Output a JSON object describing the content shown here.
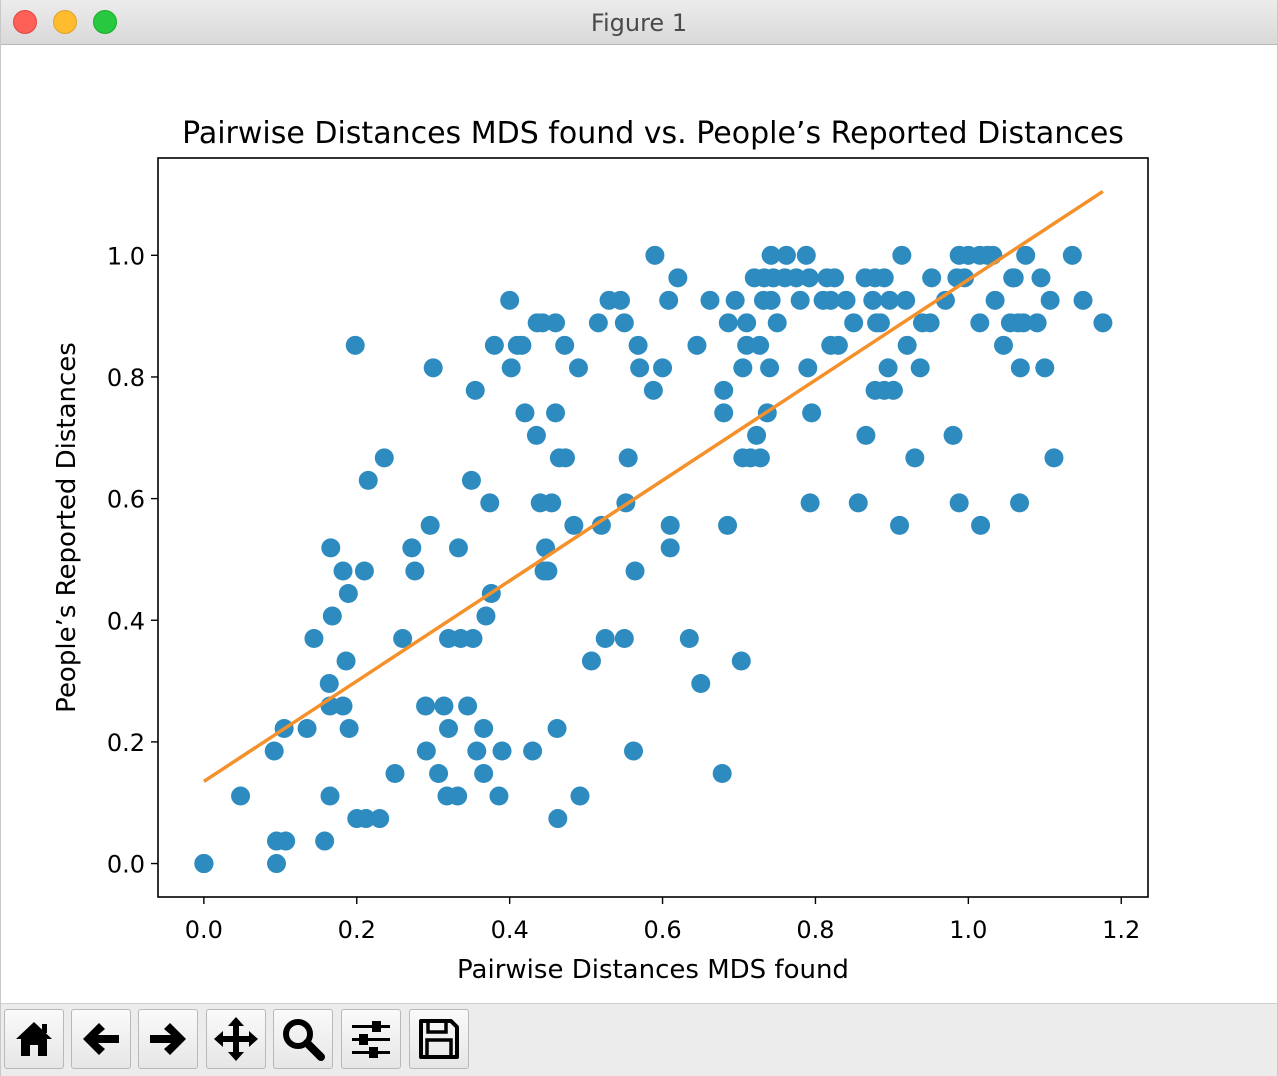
{
  "window": {
    "title": "Figure 1"
  },
  "toolbar": {
    "buttons": [
      {
        "name": "home-button",
        "icon": "home-icon"
      },
      {
        "name": "back-button",
        "icon": "arrow-left-icon"
      },
      {
        "name": "forward-button",
        "icon": "arrow-right-icon"
      },
      {
        "name": "pan-button",
        "icon": "move-icon"
      },
      {
        "name": "zoom-button",
        "icon": "magnifier-icon"
      },
      {
        "name": "configure-subplots-button",
        "icon": "sliders-icon"
      },
      {
        "name": "save-button",
        "icon": "floppy-disk-icon"
      }
    ]
  },
  "chart_data": {
    "type": "scatter",
    "title": "Pairwise Distances MDS found vs. People’s Reported Distances",
    "xlabel": "Pairwise Distances MDS found",
    "ylabel": "People’s Reported Distances",
    "xlim": [
      -0.06,
      1.235
    ],
    "ylim": [
      -0.055,
      1.16
    ],
    "xticks": [
      "0.0",
      "0.2",
      "0.4",
      "0.6",
      "0.8",
      "1.0",
      "1.2"
    ],
    "yticks": [
      "0.0",
      "0.2",
      "0.4",
      "0.6",
      "0.8",
      "1.0"
    ],
    "grid": false,
    "point_color": "#2e8bc0",
    "line_color": "#f5912b",
    "fit_line": {
      "x": [
        0.0,
        1.176
      ],
      "y": [
        0.135,
        1.105
      ]
    },
    "points": [
      [
        0.0,
        0.0
      ],
      [
        0.0,
        0.0
      ],
      [
        0.0,
        0.0
      ],
      [
        0.048,
        0.111
      ],
      [
        0.095,
        0.037
      ],
      [
        0.095,
        0.0
      ],
      [
        0.107,
        0.037
      ],
      [
        0.092,
        0.185
      ],
      [
        0.105,
        0.222
      ],
      [
        0.135,
        0.222
      ],
      [
        0.144,
        0.37
      ],
      [
        0.158,
        0.037
      ],
      [
        0.164,
        0.296
      ],
      [
        0.165,
        0.111
      ],
      [
        0.165,
        0.259
      ],
      [
        0.166,
        0.519
      ],
      [
        0.168,
        0.407
      ],
      [
        0.182,
        0.259
      ],
      [
        0.182,
        0.481
      ],
      [
        0.186,
        0.333
      ],
      [
        0.189,
        0.444
      ],
      [
        0.19,
        0.222
      ],
      [
        0.198,
        0.852
      ],
      [
        0.2,
        0.074
      ],
      [
        0.212,
        0.074
      ],
      [
        0.21,
        0.481
      ],
      [
        0.215,
        0.63
      ],
      [
        0.23,
        0.074
      ],
      [
        0.236,
        0.667
      ],
      [
        0.25,
        0.148
      ],
      [
        0.26,
        0.37
      ],
      [
        0.272,
        0.519
      ],
      [
        0.276,
        0.481
      ],
      [
        0.29,
        0.259
      ],
      [
        0.291,
        0.185
      ],
      [
        0.296,
        0.556
      ],
      [
        0.3,
        0.815
      ],
      [
        0.307,
        0.148
      ],
      [
        0.314,
        0.259
      ],
      [
        0.318,
        0.111
      ],
      [
        0.32,
        0.37
      ],
      [
        0.32,
        0.222
      ],
      [
        0.332,
        0.111
      ],
      [
        0.333,
        0.519
      ],
      [
        0.336,
        0.37
      ],
      [
        0.345,
        0.259
      ],
      [
        0.35,
        0.63
      ],
      [
        0.352,
        0.37
      ],
      [
        0.355,
        0.778
      ],
      [
        0.357,
        0.185
      ],
      [
        0.366,
        0.222
      ],
      [
        0.366,
        0.148
      ],
      [
        0.369,
        0.407
      ],
      [
        0.374,
        0.593
      ],
      [
        0.376,
        0.444
      ],
      [
        0.38,
        0.852
      ],
      [
        0.386,
        0.111
      ],
      [
        0.39,
        0.185
      ],
      [
        0.4,
        0.926
      ],
      [
        0.402,
        0.815
      ],
      [
        0.41,
        0.852
      ],
      [
        0.416,
        0.852
      ],
      [
        0.42,
        0.741
      ],
      [
        0.43,
        0.185
      ],
      [
        0.435,
        0.704
      ],
      [
        0.436,
        0.889
      ],
      [
        0.44,
        0.593
      ],
      [
        0.443,
        0.889
      ],
      [
        0.445,
        0.481
      ],
      [
        0.447,
        0.519
      ],
      [
        0.45,
        0.481
      ],
      [
        0.455,
        0.593
      ],
      [
        0.46,
        0.889
      ],
      [
        0.46,
        0.741
      ],
      [
        0.462,
        0.222
      ],
      [
        0.463,
        0.074
      ],
      [
        0.465,
        0.667
      ],
      [
        0.473,
        0.667
      ],
      [
        0.472,
        0.852
      ],
      [
        0.484,
        0.556
      ],
      [
        0.49,
        0.815
      ],
      [
        0.492,
        0.111
      ],
      [
        0.507,
        0.333
      ],
      [
        0.516,
        0.889
      ],
      [
        0.52,
        0.556
      ],
      [
        0.525,
        0.37
      ],
      [
        0.53,
        0.926
      ],
      [
        0.545,
        0.926
      ],
      [
        0.55,
        0.889
      ],
      [
        0.55,
        0.37
      ],
      [
        0.552,
        0.593
      ],
      [
        0.555,
        0.667
      ],
      [
        0.562,
        0.185
      ],
      [
        0.564,
        0.481
      ],
      [
        0.568,
        0.852
      ],
      [
        0.57,
        0.815
      ],
      [
        0.588,
        0.778
      ],
      [
        0.59,
        1.0
      ],
      [
        0.6,
        0.815
      ],
      [
        0.608,
        0.926
      ],
      [
        0.61,
        0.556
      ],
      [
        0.61,
        0.519
      ],
      [
        0.62,
        0.963
      ],
      [
        0.635,
        0.37
      ],
      [
        0.645,
        0.852
      ],
      [
        0.65,
        0.296
      ],
      [
        0.662,
        0.926
      ],
      [
        0.678,
        0.148
      ],
      [
        0.68,
        0.778
      ],
      [
        0.68,
        0.741
      ],
      [
        0.685,
        0.556
      ],
      [
        0.686,
        0.889
      ],
      [
        0.695,
        0.926
      ],
      [
        0.703,
        0.333
      ],
      [
        0.705,
        0.815
      ],
      [
        0.705,
        0.667
      ],
      [
        0.71,
        0.889
      ],
      [
        0.71,
        0.852
      ],
      [
        0.715,
        0.667
      ],
      [
        0.72,
        0.963
      ],
      [
        0.723,
        0.704
      ],
      [
        0.727,
        0.852
      ],
      [
        0.728,
        0.667
      ],
      [
        0.732,
        0.926
      ],
      [
        0.733,
        0.963
      ],
      [
        0.737,
        0.741
      ],
      [
        0.74,
        0.815
      ],
      [
        0.742,
        0.926
      ],
      [
        0.742,
        1.0
      ],
      [
        0.745,
        0.963
      ],
      [
        0.75,
        0.889
      ],
      [
        0.76,
        0.963
      ],
      [
        0.762,
        1.0
      ],
      [
        0.775,
        0.963
      ],
      [
        0.78,
        0.926
      ],
      [
        0.788,
        1.0
      ],
      [
        0.79,
        0.815
      ],
      [
        0.792,
        0.963
      ],
      [
        0.793,
        0.593
      ],
      [
        0.795,
        0.741
      ],
      [
        0.81,
        0.926
      ],
      [
        0.815,
        0.963
      ],
      [
        0.82,
        0.926
      ],
      [
        0.825,
        0.963
      ],
      [
        0.82,
        0.852
      ],
      [
        0.83,
        0.852
      ],
      [
        0.84,
        0.926
      ],
      [
        0.85,
        0.889
      ],
      [
        0.856,
        0.593
      ],
      [
        0.865,
        0.963
      ],
      [
        0.866,
        0.704
      ],
      [
        0.875,
        0.926
      ],
      [
        0.878,
        0.963
      ],
      [
        0.878,
        0.778
      ],
      [
        0.88,
        0.889
      ],
      [
        0.885,
        0.889
      ],
      [
        0.89,
        0.963
      ],
      [
        0.89,
        0.778
      ],
      [
        0.895,
        0.815
      ],
      [
        0.897,
        0.926
      ],
      [
        0.902,
        0.778
      ],
      [
        0.91,
        0.556
      ],
      [
        0.913,
        1.0
      ],
      [
        0.92,
        0.852
      ],
      [
        0.918,
        0.926
      ],
      [
        0.93,
        0.667
      ],
      [
        0.937,
        0.815
      ],
      [
        0.94,
        0.889
      ],
      [
        0.95,
        0.889
      ],
      [
        0.952,
        0.963
      ],
      [
        0.97,
        0.926
      ],
      [
        0.98,
        0.704
      ],
      [
        0.985,
        0.963
      ],
      [
        0.988,
        1.0
      ],
      [
        0.988,
        0.593
      ],
      [
        0.995,
        0.963
      ],
      [
        1.0,
        1.0
      ],
      [
        1.015,
        0.889
      ],
      [
        1.016,
        0.556
      ],
      [
        1.015,
        1.0
      ],
      [
        1.025,
        1.0
      ],
      [
        1.032,
        1.0
      ],
      [
        1.035,
        0.926
      ],
      [
        1.046,
        0.852
      ],
      [
        1.058,
        0.963
      ],
      [
        1.055,
        0.889
      ],
      [
        1.06,
        0.963
      ],
      [
        1.065,
        0.889
      ],
      [
        1.068,
        0.815
      ],
      [
        1.067,
        0.593
      ],
      [
        1.072,
        0.889
      ],
      [
        1.075,
        1.0
      ],
      [
        1.09,
        0.889
      ],
      [
        1.095,
        0.963
      ],
      [
        1.1,
        0.815
      ],
      [
        1.107,
        0.926
      ],
      [
        1.112,
        0.667
      ],
      [
        1.136,
        1.0
      ],
      [
        1.15,
        0.926
      ],
      [
        1.176,
        0.889
      ]
    ]
  }
}
